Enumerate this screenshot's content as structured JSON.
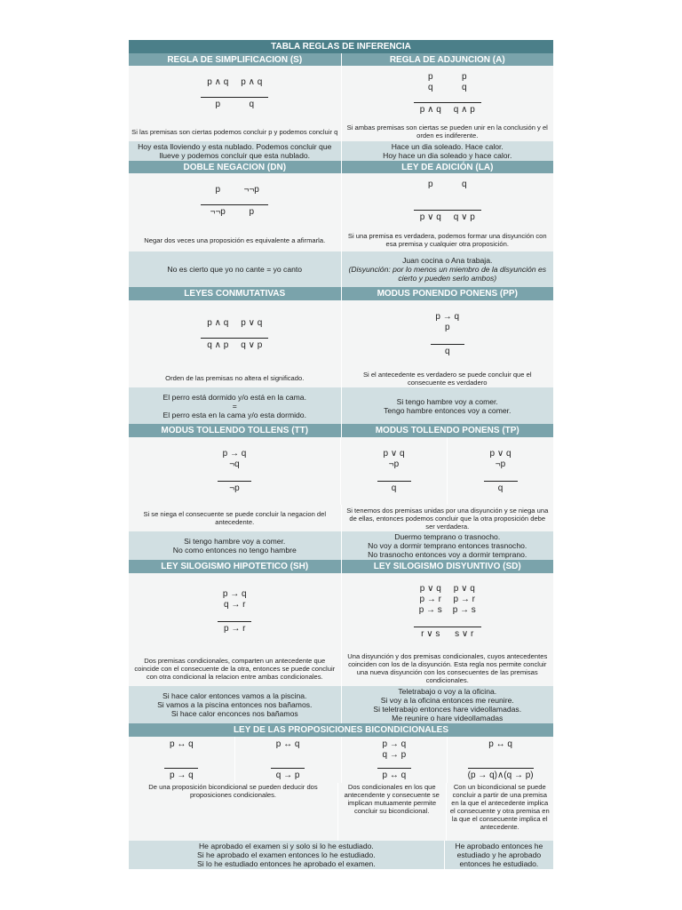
{
  "title": "TABLA REGLAS DE INFERENCIA",
  "s": {
    "h": "REGLA DE SIMPLIFICACION (S)",
    "f": [
      {
        "p": [
          "p ∧ q"
        ],
        "c": "p"
      },
      {
        "p": [
          "p ∧ q"
        ],
        "c": "q"
      }
    ],
    "d": "Si las premisas son ciertas podemos concluir p y podemos concluir q",
    "e": [
      "Hoy esta lloviendo y esta nublado. Podemos concluir que llueve y podemos concluir que esta nublado."
    ]
  },
  "a": {
    "h": "REGLA DE ADJUNCION (A)",
    "f": [
      {
        "p": [
          "p",
          "q"
        ],
        "c": "p ∧ q"
      },
      {
        "p": [
          "p",
          "q"
        ],
        "c": "q ∧ p"
      }
    ],
    "d": "Si ambas premisas son ciertas se pueden unir en la conclusión y el orden es indiferente.",
    "e": [
      "Hace un dia soleado. Hace calor.",
      "Hoy hace un dia soleado y hace calor."
    ]
  },
  "dn": {
    "h": "DOBLE NEGACION (DN)",
    "f": [
      {
        "p": [
          "p"
        ],
        "c": "¬¬p"
      },
      {
        "p": [
          "¬¬p"
        ],
        "c": "p"
      }
    ],
    "d": "Negar dos veces una proposición es equivalente a afirmarla.",
    "e": [
      "No es cierto que yo no cante = yo canto"
    ]
  },
  "la": {
    "h": "LEY DE ADICIÓN (LA)",
    "f": [
      {
        "p": [
          "p"
        ],
        "c": "p ∨ q"
      },
      {
        "p": [
          "q"
        ],
        "c": "q ∨ p"
      }
    ],
    "d": "Si una premisa es verdadera, podemos formar una disyunción con esa premisa y cualquier otra proposición.",
    "e": [
      "Juan cocina o Ana trabaja."
    ],
    "note": "(Disyunción: por lo menos un miembro de la disyunción es cierto y pueden serlo ambos)"
  },
  "lc": {
    "h": "LEYES CONMUTATIVAS",
    "f": [
      {
        "p": [
          "p ∧ q"
        ],
        "c": "q ∧ p"
      },
      {
        "p": [
          "p ∨ q"
        ],
        "c": "q ∨ p"
      }
    ],
    "d": "Orden de las premisas no altera el significado.",
    "e": [
      "El perro está dormido y/o está en la cama.",
      "=",
      "El perro esta en la cama y/o esta dormido."
    ]
  },
  "pp": {
    "h": "MODUS PONENDO PONENS (PP)",
    "f": [
      {
        "p": [
          "p → q",
          "p"
        ],
        "c": "q"
      }
    ],
    "d": "Si el antecedente es verdadero se puede concluir que el consecuente es verdadero",
    "e": [
      "Si tengo hambre voy a comer.",
      "Tengo hambre entonces voy a comer."
    ]
  },
  "tt": {
    "h": "MODUS TOLLENDO TOLLENS (TT)",
    "f": [
      {
        "p": [
          "p → q",
          "¬q"
        ],
        "c": "¬p"
      }
    ],
    "d": "Si se niega el consecuente se puede concluir la negacion del antecedente.",
    "e": [
      "Si tengo hambre voy a comer.",
      "No como entonces no tengo hambre"
    ]
  },
  "tp": {
    "h": "MODUS TOLLENDO PONENS (TP)",
    "f": [
      {
        "p": [
          "p ∨ q",
          "¬p"
        ],
        "c": "q"
      },
      {
        "p": [
          "p ∨ q",
          "¬p"
        ],
        "c": "q"
      }
    ],
    "d": "Si tenemos dos premisas unidas por una disyunción y se niega una de ellas, entonces podemos concluir que la otra proposición debe ser verdadera.",
    "e": [
      "Duermo temprano o trasnocho.",
      "No voy a dormir temprano entonces trasnocho.",
      "No trasnocho entonces voy a dormir temprano."
    ]
  },
  "sh": {
    "h": "LEY SILOGISMO HIPOTETICO (SH)",
    "f": [
      {
        "p": [
          "p → q",
          "q → r"
        ],
        "c": "p → r"
      }
    ],
    "d": "Dos premisas condicionales, comparten un antecedente que coincide con el consecuente de la otra, entonces se puede concluir con otra condicional la relacion entre ambas condicionales.",
    "e": [
      "Si hace calor entonces vamos a la piscina.",
      "Si vamos a la piscina entonces nos bañamos.",
      "Si hace calor enconces nos bañamos"
    ]
  },
  "sd": {
    "h": "LEY SILOGISMO DISYUNTIVO (SD)",
    "f": [
      {
        "p": [
          "p ∨ q",
          "p → r",
          "p → s"
        ],
        "c": "r ∨ s"
      },
      {
        "p": [
          "p ∨ q",
          "p → r",
          "p → s"
        ],
        "c": "s ∨ r"
      }
    ],
    "d": "Una disyunción y dos premisas condicionales, cuyos antecedentes coinciden con los de la disyunción. Esta regla nos permite concluir una nueva disyunción con los consecuentes de las premisas condicionales.",
    "e": [
      "Teletrabajo o voy a la oficina.",
      "Si voy a la oficina entonces me reunire.",
      "Si teletrabajo entonces hare videollamadas.",
      "Me reunire o hare videollamadas"
    ]
  },
  "bi": {
    "h": "LEY DE LAS PROPOSICIONES BICONDICIONALES",
    "f": [
      {
        "p": [
          "p ↔ q"
        ],
        "c": "p → q"
      },
      {
        "p": [
          "p ↔ q"
        ],
        "c": "q → p"
      },
      {
        "p": [
          "p → q",
          "q → p"
        ],
        "c": "p ↔ q"
      },
      {
        "p": [
          "p ↔ q"
        ],
        "c": "(p → q)∧(q → p)"
      }
    ],
    "d1": "De una proposición bicondicional se pueden deducir dos proposiciones condicionales.",
    "d2": "Dos condicionales en los que antecendente y consecuente se implican mutuamente permite concluir su bicondicional.",
    "d3": "Con un bicondicional se puede concluir a partir de una premisa en la que el antecedente implica el consecuente y otra premisa en la que el consecuente implica el antecedente.",
    "e1": [
      "He aprobado el examen si y solo si lo he estudiado.",
      "Si he aprobado el examen entonces lo he estudiado.",
      "Si lo he estudiado entonces he aprobado el examen."
    ],
    "e2": [
      "He aprobado entonces he estudiado y he aprobado entonces he estudiado."
    ]
  }
}
